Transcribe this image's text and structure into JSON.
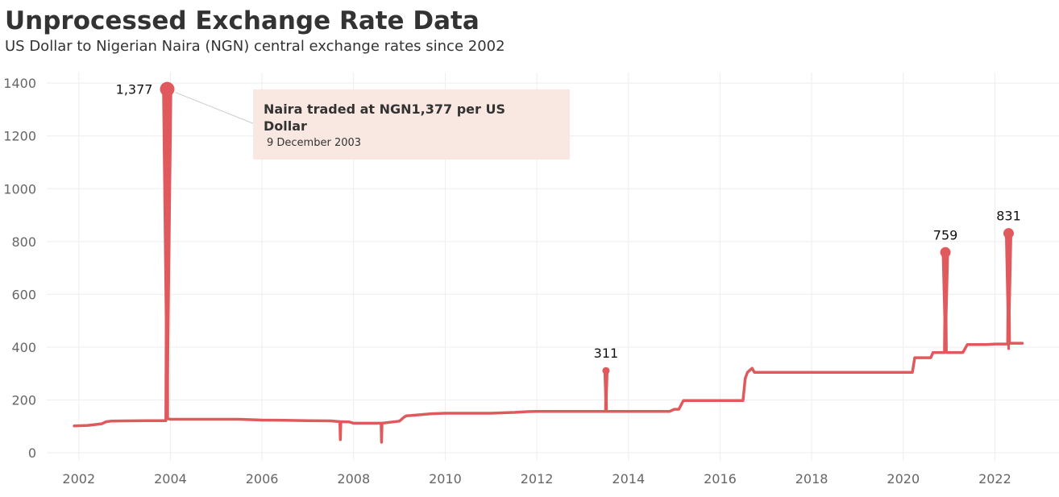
{
  "header": {
    "title": "Unprocessed Exchange Rate Data",
    "subtitle": "US Dollar to Nigerian Naira (NGN) central exchange rates since 2002"
  },
  "annotation": {
    "title": "Naira traded at NGN1,377 per US Dollar",
    "date": "9 December 2003"
  },
  "colors": {
    "line": "#e05a5d",
    "grid": "#eeeeee",
    "annotation_bg": "#f9e7e1"
  },
  "chart_data": {
    "type": "line",
    "title": "Unprocessed Exchange Rate Data",
    "subtitle": "US Dollar to Nigerian Naira (NGN) central exchange rates since 2002",
    "xlabel": "",
    "ylabel": "",
    "xlim": [
      2001.3,
      2023.4
    ],
    "ylim": [
      -30,
      1440
    ],
    "x_ticks": [
      2002,
      2004,
      2006,
      2008,
      2010,
      2012,
      2014,
      2016,
      2018,
      2020,
      2022
    ],
    "x_tick_labels": [
      "2002",
      "2004",
      "2006",
      "2008",
      "2010",
      "2012",
      "2014",
      "2016",
      "2018",
      "2020",
      "2022"
    ],
    "y_ticks": [
      0,
      200,
      400,
      600,
      800,
      1000,
      1200,
      1400
    ],
    "y_tick_labels": [
      "0",
      "200",
      "400",
      "600",
      "800",
      "1000",
      "1200",
      "1400"
    ],
    "grid": true,
    "series": [
      {
        "x": [
          2001.9,
          2002.2,
          2002.5,
          2002.6,
          2002.7,
          2003.0,
          2003.5,
          2003.9,
          2003.93,
          2003.94,
          2003.95,
          2004.0,
          2004.5,
          2005.0,
          2005.5,
          2006.0,
          2006.5,
          2007.0,
          2007.5,
          2007.7,
          2007.71,
          2007.72,
          2007.9,
          2008.0,
          2008.6,
          2008.61,
          2008.62,
          2009.0,
          2009.1,
          2009.15,
          2009.5,
          2009.7,
          2010.0,
          2011.0,
          2011.5,
          2011.8,
          2012.0,
          2013.0,
          2013.5,
          2013.51,
          2013.52,
          2014.0,
          2014.9,
          2015.0,
          2015.1,
          2015.2,
          2016.0,
          2016.5,
          2016.55,
          2016.6,
          2016.7,
          2016.75,
          2017.0,
          2018.0,
          2019.0,
          2020.0,
          2020.2,
          2020.25,
          2020.6,
          2020.65,
          2020.9,
          2020.92,
          2020.94,
          2021.0,
          2021.3,
          2021.4,
          2021.8,
          2022.0,
          2022.28,
          2022.3,
          2022.32,
          2022.6
        ],
        "y": [
          102,
          104,
          110,
          118,
          120,
          121,
          122,
          122,
          1377,
          130,
          129,
          127,
          127,
          127,
          127,
          124,
          123,
          122,
          121,
          118,
          50,
          118,
          117,
          112,
          112,
          40,
          112,
          120,
          135,
          140,
          145,
          148,
          150,
          150,
          153,
          156,
          157,
          157,
          157,
          311,
          157,
          157,
          157,
          165,
          165,
          198,
          198,
          198,
          282,
          305,
          320,
          305,
          305,
          305,
          305,
          305,
          305,
          360,
          360,
          380,
          380,
          759,
          380,
          380,
          380,
          410,
          410,
          412,
          412,
          831,
          415,
          415
        ]
      }
    ],
    "data_labels": [
      {
        "x": 2003.93,
        "y": 1377,
        "text": "1,377"
      },
      {
        "x": 2013.51,
        "y": 311,
        "text": "311"
      },
      {
        "x": 2020.92,
        "y": 759,
        "text": "759"
      },
      {
        "x": 2022.3,
        "y": 831,
        "text": "831"
      }
    ]
  }
}
